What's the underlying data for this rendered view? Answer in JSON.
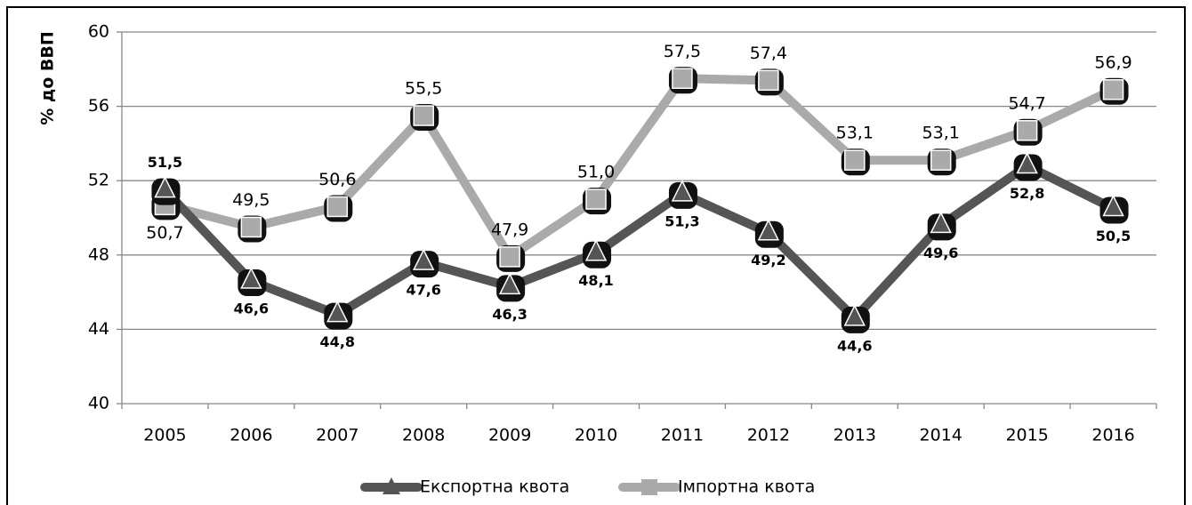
{
  "chart_data": {
    "type": "line",
    "y_label": "% до ВВП",
    "categories": [
      "2005",
      "2006",
      "2007",
      "2008",
      "2009",
      "2010",
      "2011",
      "2012",
      "2013",
      "2014",
      "2015",
      "2016"
    ],
    "series": [
      {
        "name": "Експортна квота",
        "color": "#555555",
        "marker": "triangle",
        "values": [
          51.5,
          46.6,
          44.8,
          47.6,
          46.3,
          48.1,
          51.3,
          49.2,
          44.6,
          49.6,
          52.8,
          50.5
        ],
        "value_labels": [
          "51,5",
          "46,6",
          "44,8",
          "47,6",
          "46,3",
          "48,1",
          "51,3",
          "49,2",
          "44,6",
          "49,6",
          "52,8",
          "50,5"
        ]
      },
      {
        "name": "Імпортна квота",
        "color": "#aaaaaa",
        "marker": "square",
        "values": [
          50.7,
          49.5,
          50.6,
          55.5,
          47.9,
          51.0,
          57.5,
          57.4,
          53.1,
          53.1,
          54.7,
          56.9
        ],
        "value_labels": [
          "50,7",
          "49,5",
          "50,6",
          "55,5",
          "47,9",
          "51,0",
          "57,5",
          "57,4",
          "53,1",
          "53,1",
          "54,7",
          "56,9"
        ]
      }
    ],
    "ylim": [
      40,
      60
    ],
    "yticks": [
      40,
      44,
      48,
      52,
      56,
      60
    ],
    "grid": true,
    "legend": "bottom"
  }
}
